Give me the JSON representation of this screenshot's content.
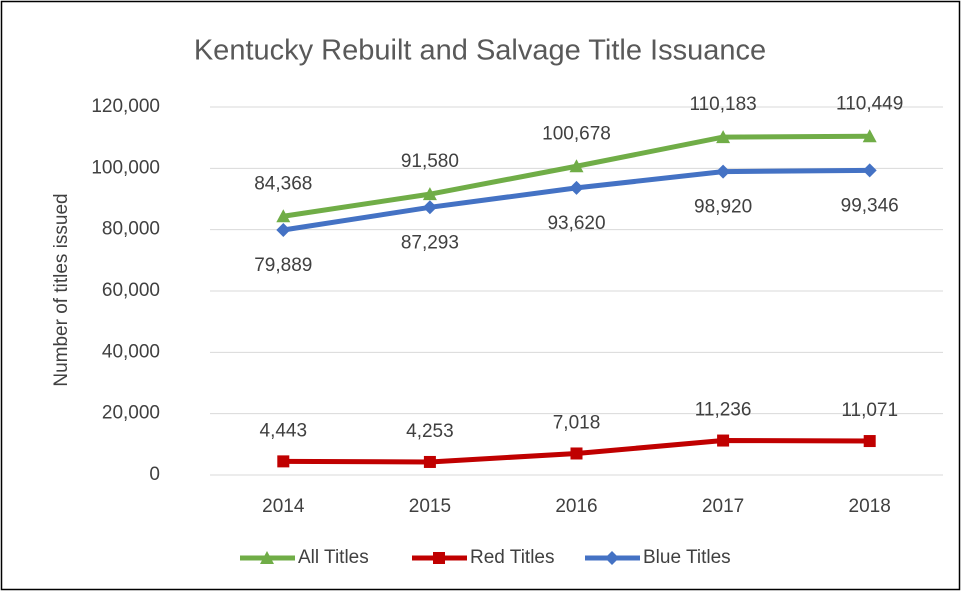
{
  "chart_data": {
    "type": "line",
    "title": "Kentucky Rebuilt and Salvage Title Issuance",
    "y_label": "Number of titles issued",
    "categories": [
      "2014",
      "2015",
      "2016",
      "2017",
      "2018"
    ],
    "series": [
      {
        "name": "All Titles",
        "color": "#70ad47",
        "marker": "triangle",
        "values": [
          84368,
          91580,
          100678,
          110183,
          110449
        ],
        "value_labels": [
          "84,368",
          "91,580",
          "100,678",
          "110,183",
          "110,449"
        ]
      },
      {
        "name": "Red Titles",
        "color": "#c00000",
        "marker": "square",
        "values": [
          4443,
          4253,
          7018,
          11236,
          11071
        ],
        "value_labels": [
          "4,443",
          "4,253",
          "7,018",
          "11,236",
          "11,071"
        ]
      },
      {
        "name": "Blue Titles",
        "color": "#4472c4",
        "marker": "diamond",
        "values": [
          79889,
          87293,
          93620,
          98920,
          99346
        ],
        "value_labels": [
          "79,889",
          "87,293",
          "93,620",
          "98,920",
          "99,346"
        ]
      }
    ],
    "ylim": [
      0,
      120000
    ],
    "yticks": [
      0,
      {
        "value": 20000,
        "label": "20,000"
      },
      {
        "value": 40000,
        "label": "40,000"
      },
      {
        "value": 60000,
        "label": "60,000"
      },
      {
        "value": 80000,
        "label": "80,000"
      },
      {
        "value": 100000,
        "label": "100,000"
      },
      {
        "value": 120000,
        "label": "120,000"
      }
    ],
    "grid": true,
    "legend": "bottom"
  }
}
